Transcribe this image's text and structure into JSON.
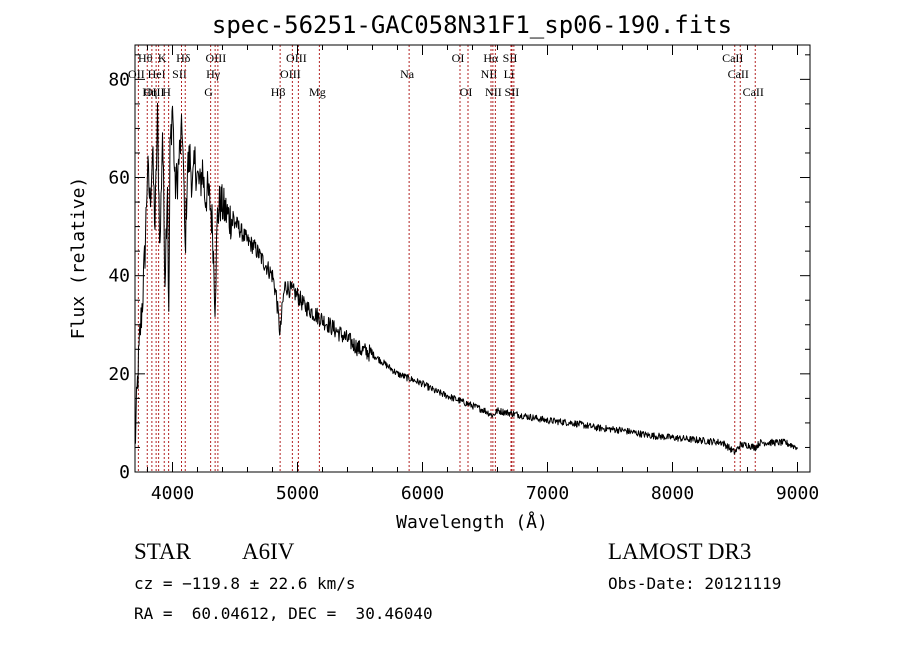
{
  "chart_data": {
    "type": "line",
    "title": "spec-56251-GAC058N31F1_sp06-190.fits",
    "xlabel": "Wavelength (Å)",
    "ylabel": "Flux (relative)",
    "xlim": [
      3700,
      9100
    ],
    "ylim": [
      0,
      87
    ],
    "x_ticks": [
      "4000",
      "5000",
      "6000",
      "7000",
      "8000",
      "9000"
    ],
    "x_tick_values": [
      4000,
      5000,
      6000,
      7000,
      8000,
      9000
    ],
    "y_ticks": [
      "0",
      "20",
      "40",
      "60",
      "80"
    ],
    "y_tick_values": [
      0,
      20,
      40,
      60,
      80
    ],
    "series": [
      {
        "name": "spectrum",
        "color": "#000000",
        "x": [
          3700,
          3720,
          3740,
          3760,
          3780,
          3800,
          3820,
          3840,
          3860,
          3880,
          3900,
          3920,
          3940,
          3960,
          3970,
          3980,
          4000,
          4020,
          4040,
          4060,
          4080,
          4101,
          4120,
          4140,
          4160,
          4180,
          4200,
          4220,
          4240,
          4260,
          4280,
          4300,
          4320,
          4340,
          4360,
          4380,
          4400,
          4450,
          4500,
          4550,
          4600,
          4650,
          4700,
          4750,
          4800,
          4830,
          4861,
          4880,
          4900,
          4950,
          5000,
          5050,
          5100,
          5150,
          5200,
          5300,
          5400,
          5500,
          5600,
          5700,
          5800,
          5900,
          6000,
          6100,
          6200,
          6300,
          6400,
          6500,
          6563,
          6600,
          6700,
          6800,
          6900,
          7000,
          7200,
          7400,
          7600,
          7800,
          8000,
          8200,
          8400,
          8498,
          8542,
          8600,
          8662,
          8700,
          8800,
          8900,
          9000
        ],
        "y": [
          5,
          18,
          28,
          35,
          45,
          62,
          55,
          65,
          50,
          72,
          45,
          70,
          40,
          60,
          30,
          65,
          75,
          58,
          60,
          66,
          70,
          45,
          62,
          64,
          58,
          63,
          60,
          58,
          62,
          56,
          57,
          55,
          50,
          35,
          52,
          55,
          54,
          52,
          51,
          49,
          47,
          46,
          44,
          42,
          40,
          36,
          28,
          34,
          38,
          37,
          36,
          34,
          33,
          32,
          31,
          29,
          27,
          25,
          24,
          22,
          20,
          19,
          18,
          16.5,
          15.5,
          14.5,
          13.5,
          12.5,
          11.5,
          12.5,
          12,
          11.5,
          11,
          10.5,
          10,
          9,
          8.5,
          7.5,
          7,
          6.5,
          6,
          4,
          5.5,
          5.5,
          5,
          6,
          6,
          6,
          5
        ]
      }
    ],
    "line_markers": [
      {
        "label": "Hθ",
        "x": 3798,
        "row": 1
      },
      {
        "label": "OII",
        "x": 3727,
        "row": 2
      },
      {
        "label": "HeI",
        "x": 3889,
        "row": 2
      },
      {
        "label": "OIII",
        "x": 3869,
        "row": 3
      },
      {
        "label": "Hη",
        "x": 3835,
        "row": 3
      },
      {
        "label": "K",
        "x": 3934,
        "row": 1
      },
      {
        "label": "SII",
        "x": 4072,
        "row": 2
      },
      {
        "label": "H",
        "x": 3969,
        "row": 3
      },
      {
        "label": "Hδ",
        "x": 4102,
        "row": 1
      },
      {
        "label": "OIII",
        "x": 4363,
        "row": 1
      },
      {
        "label": "Hγ",
        "x": 4341,
        "row": 2
      },
      {
        "label": "G",
        "x": 4305,
        "row": 3
      },
      {
        "label": "OIII",
        "x": 5007,
        "row": 1
      },
      {
        "label": "OIII",
        "x": 4959,
        "row": 2
      },
      {
        "label": "Hβ",
        "x": 4861,
        "row": 3
      },
      {
        "label": "Mg",
        "x": 5175,
        "row": 3
      },
      {
        "label": "Na",
        "x": 5893,
        "row": 2
      },
      {
        "label": "OI",
        "x": 6300,
        "row": 1
      },
      {
        "label": "OI",
        "x": 6364,
        "row": 3
      },
      {
        "label": "Hα",
        "x": 6563,
        "row": 1
      },
      {
        "label": "SII",
        "x": 6716,
        "row": 1
      },
      {
        "label": "NII",
        "x": 6548,
        "row": 2
      },
      {
        "label": "Li",
        "x": 6708,
        "row": 2
      },
      {
        "label": "NII",
        "x": 6583,
        "row": 3
      },
      {
        "label": "SII",
        "x": 6731,
        "row": 3
      },
      {
        "label": "CaII",
        "x": 8498,
        "row": 1
      },
      {
        "label": "CaII",
        "x": 8542,
        "row": 2
      },
      {
        "label": "CaII",
        "x": 8662,
        "row": 3
      }
    ]
  },
  "info": {
    "object_type": "STAR",
    "subclass": "A6IV",
    "survey": "LAMOST DR3",
    "cz": "cz = −119.8 ± 22.6 km/s",
    "obs_date": "Obs-Date: 20121119",
    "coords": "RA =  60.04612, DEC =  30.46040"
  },
  "colors": {
    "marker_line": "#b22222",
    "axis": "#000000",
    "background": "#ffffff"
  }
}
